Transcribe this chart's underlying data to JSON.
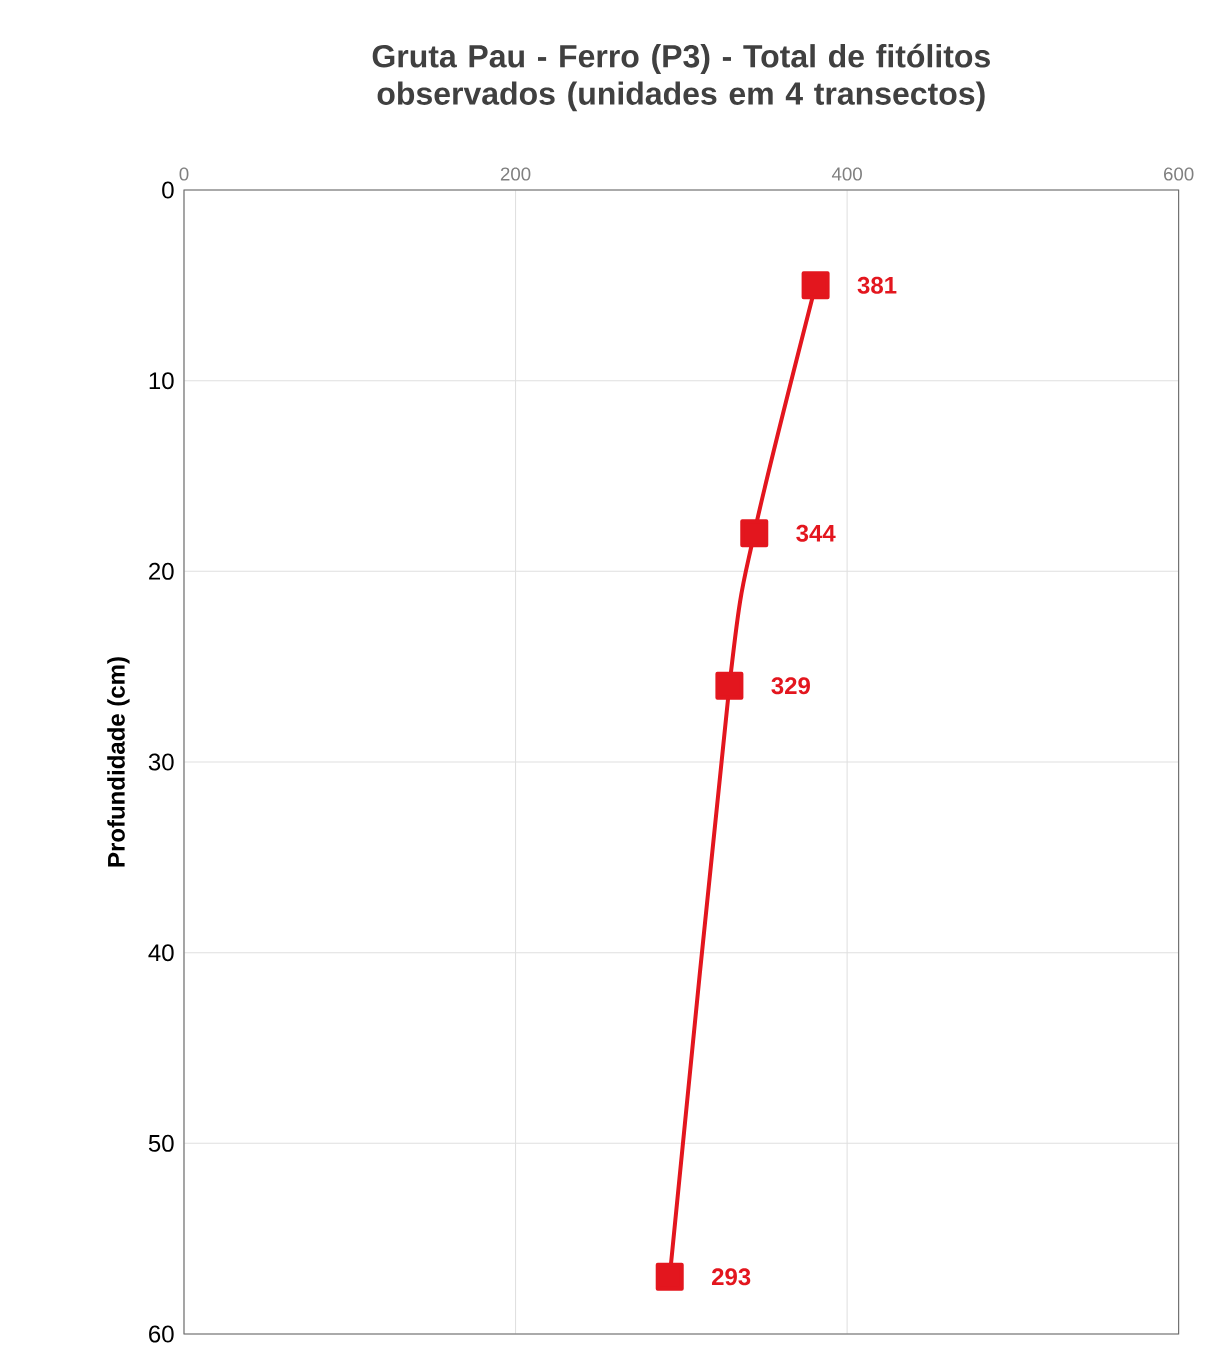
{
  "chart_data": {
    "type": "line",
    "title": "Gruta Pau - Ferro (P3) - Total de fitólitos observados (unidades em 4 transectos)",
    "ylabel": "Profundidade (cm)",
    "x": [
      381,
      344,
      329,
      293
    ],
    "series": [
      {
        "color": "#e3161e",
        "values": [
          5,
          18,
          26,
          57
        ]
      }
    ],
    "xlim": [
      0,
      600
    ],
    "xticks": [
      0,
      200,
      400,
      600
    ],
    "ylim": [
      60,
      0
    ],
    "yticks": [
      0,
      10,
      20,
      30,
      40,
      50,
      60
    ],
    "grid": true,
    "marker": "square",
    "line_style": "solid",
    "annotations": [
      {
        "text": "381",
        "x": 381,
        "y": 5
      },
      {
        "text": "344",
        "x": 344,
        "y": 18
      },
      {
        "text": "329",
        "x": 329,
        "y": 26
      },
      {
        "text": "293",
        "x": 293,
        "y": 57
      }
    ]
  }
}
